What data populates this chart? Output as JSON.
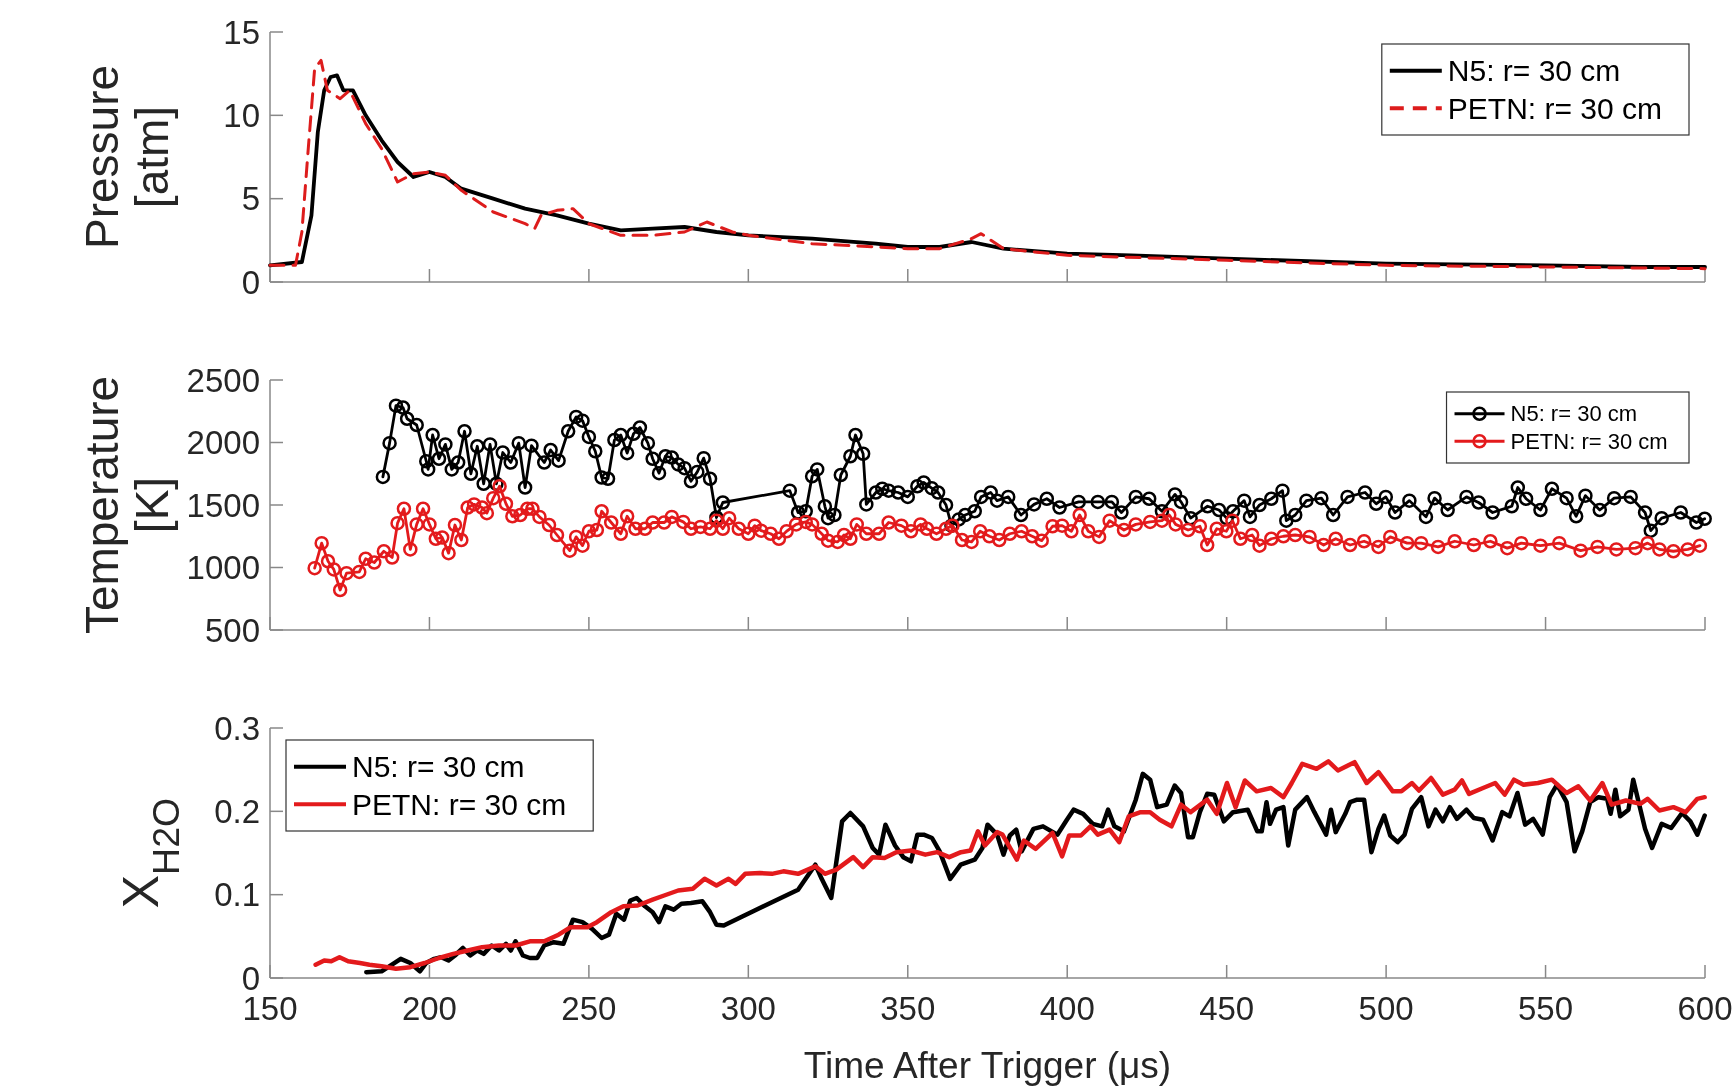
{
  "chart_data": [
    {
      "type": "line",
      "ylabel": "Pressure [atm]",
      "xlim": [
        150,
        600
      ],
      "xticks": [
        150,
        200,
        250,
        300,
        350,
        400,
        450,
        500,
        550,
        600
      ],
      "ylim": [
        0,
        15
      ],
      "yticks": [
        0,
        5,
        10,
        15
      ],
      "tick_labels": "y",
      "legend": "top right",
      "grid": false,
      "series": [
        {
          "name": "N5: r= 30 cm",
          "color": "#000000",
          "line_style": "solid",
          "x": [
            150,
            160,
            163,
            165,
            167,
            169,
            171,
            173,
            176,
            180,
            185,
            190,
            195,
            200,
            205,
            210,
            220,
            230,
            240,
            250,
            260,
            270,
            280,
            290,
            300,
            320,
            340,
            350,
            360,
            370,
            380,
            400,
            420,
            450,
            500,
            550,
            580,
            600
          ],
          "values": [
            1,
            1.2,
            4,
            9,
            11.5,
            12.3,
            12.4,
            11.5,
            11.5,
            10,
            8.5,
            7.2,
            6.3,
            6.6,
            6.3,
            5.6,
            5,
            4.4,
            4,
            3.5,
            3.1,
            3.2,
            3.3,
            3,
            2.8,
            2.6,
            2.3,
            2.1,
            2.1,
            2.4,
            2,
            1.7,
            1.6,
            1.4,
            1.1,
            1,
            0.9,
            0.9
          ]
        },
        {
          "name": "PETN: r= 30 cm",
          "color": "#dd1c1c",
          "line_style": "dashed",
          "x": [
            150,
            158,
            160,
            162,
            164,
            166,
            168,
            172,
            175,
            180,
            185,
            190,
            195,
            200,
            205,
            210,
            220,
            230,
            233,
            235,
            240,
            245,
            250,
            260,
            270,
            280,
            287,
            295,
            300,
            320,
            330,
            340,
            350,
            360,
            370,
            373,
            380,
            400,
            450,
            500,
            550,
            600
          ],
          "values": [
            1,
            1,
            3,
            8,
            12.8,
            13.3,
            11.5,
            11,
            11.5,
            9.5,
            8,
            6,
            6.5,
            6.6,
            6.4,
            5.5,
            4.2,
            3.5,
            3.2,
            4,
            4.3,
            4.4,
            3.5,
            2.8,
            2.8,
            3,
            3.6,
            3,
            2.8,
            2.3,
            2.2,
            2.1,
            2,
            2,
            2.6,
            2.9,
            2,
            1.6,
            1.3,
            1,
            0.9,
            0.8
          ]
        }
      ]
    },
    {
      "type": "line",
      "ylabel": "Temperature [K]",
      "xlim": [
        150,
        600
      ],
      "xticks": [
        150,
        200,
        250,
        300,
        350,
        400,
        450,
        500,
        550,
        600
      ],
      "ylim": [
        500,
        2500
      ],
      "yticks": [
        500,
        1000,
        1500,
        2000,
        2500
      ],
      "tick_labels": "y",
      "legend": "top right",
      "marker": "circle",
      "grid": false,
      "series": [
        {
          "name": "N5: r= 30 cm",
          "color": "#000000",
          "x": [
            185.4,
            187.5,
            189.5,
            191.7,
            193,
            196,
            199,
            199.6,
            201,
            203,
            205,
            207,
            209,
            211,
            213,
            215,
            217,
            219,
            221,
            223,
            225.5,
            228,
            230,
            232,
            236,
            238,
            240.5,
            243.5,
            246,
            248,
            250,
            252,
            254,
            256,
            258,
            260,
            262,
            264,
            266,
            268.5,
            270,
            272,
            274,
            276,
            278,
            280,
            282,
            284,
            286,
            288,
            290,
            292,
            313,
            315.6,
            318,
            320,
            321.6,
            324,
            325,
            327,
            329,
            332,
            333.6,
            336,
            337,
            340,
            342,
            344,
            347,
            350,
            353,
            355,
            357.5,
            359.5,
            362,
            363.7,
            366,
            368,
            371,
            373,
            376,
            378,
            381.5,
            385.5,
            389.6,
            393.6,
            397.6,
            403.6,
            409.6,
            414,
            417,
            421.5,
            425.7,
            429.7,
            433.8,
            435.7,
            438.7,
            444,
            447.6,
            450,
            452,
            455.5,
            457.3,
            460.3,
            464,
            467.5,
            468.7,
            471.5,
            475,
            479.7,
            483.4,
            487.9,
            493.4,
            496.9,
            499.9,
            502.8,
            507.3,
            512.5,
            515.2,
            519.3,
            525.2,
            529,
            533.4,
            539.4,
            541.3,
            543.9,
            548.4,
            552,
            556.6,
            559.6,
            562.5,
            567,
            571.5,
            576.7,
            581.2,
            583,
            586.4,
            592.4,
            597.3,
            599.9
          ],
          "values": [
            1725,
            1995,
            2295,
            2280,
            2190,
            2140,
            1850,
            1785,
            2060,
            1870,
            1985,
            1785,
            1840,
            2090,
            1750,
            1970,
            1670,
            1985,
            1670,
            1920,
            1840,
            1995,
            1640,
            1975,
            1840,
            1940,
            1855,
            2090,
            2205,
            2175,
            2045,
            1930,
            1720,
            1710,
            2020,
            2060,
            1915,
            2070,
            2120,
            1995,
            1870,
            1755,
            1890,
            1880,
            1825,
            1795,
            1690,
            1765,
            1875,
            1710,
            1400,
            1520,
            1615,
            1440,
            1450,
            1730,
            1785,
            1490,
            1395,
            1420,
            1740,
            1890,
            2060,
            1910,
            1505,
            1600,
            1630,
            1615,
            1600,
            1565,
            1650,
            1680,
            1635,
            1600,
            1500,
            1335,
            1385,
            1420,
            1450,
            1565,
            1600,
            1535,
            1565,
            1420,
            1505,
            1550,
            1480,
            1525,
            1525,
            1525,
            1440,
            1565,
            1550,
            1450,
            1585,
            1525,
            1395,
            1490,
            1460,
            1395,
            1450,
            1535,
            1405,
            1500,
            1550,
            1615,
            1375,
            1420,
            1535,
            1555,
            1420,
            1565,
            1600,
            1510,
            1565,
            1440,
            1535,
            1405,
            1555,
            1460,
            1565,
            1520,
            1440,
            1490,
            1640,
            1550,
            1460,
            1630,
            1555,
            1410,
            1575,
            1460,
            1555,
            1565,
            1440,
            1295,
            1395,
            1440,
            1360,
            1390
          ]
        },
        {
          "name": "PETN: r= 30 cm",
          "color": "#e31a1c",
          "x": [
            164,
            166.2,
            168.2,
            170,
            172,
            174,
            178,
            180,
            182.7,
            185.7,
            188.3,
            190,
            192,
            194,
            196,
            198,
            200,
            202,
            204,
            206,
            208,
            210,
            212,
            214,
            216.5,
            218,
            220,
            222,
            224,
            226,
            228.5,
            230.7,
            232.3,
            234.5,
            237.5,
            240,
            244,
            246,
            248,
            250,
            252.5,
            254,
            257,
            260,
            262,
            264.6,
            267.6,
            270,
            273.6,
            276,
            279.6,
            282,
            285,
            288,
            290,
            292,
            294,
            297,
            300,
            302,
            304,
            307,
            309.6,
            312,
            315,
            318,
            320,
            323,
            325,
            328,
            330,
            332,
            334,
            337,
            341,
            344,
            348,
            351,
            354,
            356,
            359,
            362,
            364,
            367,
            370,
            372.7,
            375.6,
            378.7,
            382,
            385.7,
            389,
            392,
            395.4,
            398.4,
            401.3,
            403.9,
            406.6,
            410,
            413.3,
            417.8,
            421.5,
            426,
            429.7,
            432,
            434,
            437.9,
            441.6,
            443.9,
            446.9,
            449.9,
            451.8,
            454.3,
            458,
            460.3,
            464,
            467.8,
            471.5,
            476,
            480.4,
            484.2,
            488.7,
            493.1,
            497.6,
            501.3,
            506.6,
            511,
            516.3,
            521.5,
            527.5,
            532.7,
            538,
            542.4,
            548.4,
            554.3,
            561,
            566.3,
            572.2,
            578.2,
            582,
            585.7,
            590.1,
            594.6,
            598.4
          ],
          "values": [
            995,
            1195,
            1050,
            985,
            820,
            955,
            965,
            1070,
            1040,
            1130,
            1080,
            1355,
            1470,
            1145,
            1345,
            1470,
            1345,
            1230,
            1240,
            1115,
            1340,
            1220,
            1480,
            1505,
            1480,
            1435,
            1555,
            1650,
            1510,
            1410,
            1420,
            1470,
            1470,
            1405,
            1340,
            1260,
            1135,
            1245,
            1175,
            1290,
            1300,
            1450,
            1360,
            1270,
            1410,
            1310,
            1310,
            1360,
            1360,
            1405,
            1365,
            1310,
            1325,
            1310,
            1375,
            1310,
            1395,
            1310,
            1270,
            1335,
            1295,
            1270,
            1230,
            1290,
            1345,
            1365,
            1345,
            1270,
            1215,
            1205,
            1260,
            1230,
            1345,
            1270,
            1270,
            1360,
            1335,
            1290,
            1345,
            1310,
            1270,
            1310,
            1335,
            1220,
            1205,
            1290,
            1250,
            1220,
            1270,
            1290,
            1250,
            1215,
            1330,
            1335,
            1290,
            1420,
            1290,
            1245,
            1375,
            1300,
            1345,
            1365,
            1375,
            1420,
            1345,
            1300,
            1330,
            1180,
            1310,
            1290,
            1375,
            1230,
            1260,
            1175,
            1230,
            1250,
            1260,
            1245,
            1180,
            1230,
            1180,
            1210,
            1165,
            1245,
            1195,
            1195,
            1165,
            1210,
            1180,
            1210,
            1155,
            1195,
            1175,
            1195,
            1135,
            1165,
            1145,
            1155,
            1195,
            1145,
            1130,
            1145,
            1175
          ]
        }
      ]
    },
    {
      "type": "line",
      "ylabel": "X$_{H2O}$",
      "xlabel": "Time After Trigger (μs)",
      "xlim": [
        150,
        600
      ],
      "xticks": [
        150,
        200,
        250,
        300,
        350,
        400,
        450,
        500,
        550,
        600
      ],
      "ylim": [
        0,
        0.3
      ],
      "yticks": [
        0,
        0.1,
        0.2,
        0.3
      ],
      "legend": "top left",
      "grid": false,
      "series": [
        {
          "name": "N5: r= 30 cm",
          "color": "#000000",
          "x": [
            180.2,
            185,
            191,
            194,
            197,
            199,
            201.5,
            203.7,
            206,
            208,
            210.5,
            212.8,
            215,
            217,
            219.5,
            221.8,
            224,
            225.5,
            227,
            229.3,
            231.5,
            233.8,
            236,
            239,
            242,
            245,
            248,
            251,
            254,
            256.3,
            258.6,
            261,
            263,
            265,
            267.6,
            270,
            272,
            274,
            276.6,
            279,
            282,
            285.6,
            288,
            290,
            292.3,
            315.6,
            321,
            323,
            326,
            329.4,
            332,
            336,
            339,
            341,
            343,
            346,
            348.6,
            351,
            353,
            355,
            357.6,
            360,
            363.3,
            366.6,
            371,
            373.4,
            375,
            378,
            380,
            382,
            384,
            385.7,
            389.4,
            392.4,
            396.9,
            399.9,
            402,
            405,
            408,
            411,
            412.8,
            414.8,
            417.8,
            421.5,
            423.7,
            426,
            428.2,
            431.2,
            433.7,
            435.7,
            437.9,
            439.4,
            441.6,
            443.9,
            446.1,
            449.1,
            452,
            456.6,
            459.6,
            461,
            462.5,
            463.6,
            465.5,
            467.8,
            469.3,
            471.5,
            475.2,
            477.5,
            481.2,
            482.7,
            484.2,
            487.2,
            488.7,
            490.9,
            493.1,
            495.4,
            497.6,
            499.4,
            501.3,
            503.6,
            505.8,
            508.1,
            511,
            513.3,
            515.5,
            517.8,
            520,
            522.2,
            525.2,
            527.5,
            530.4,
            533.4,
            536.4,
            538.7,
            541.2,
            543.6,
            546.1,
            549.1,
            551.3,
            553.6,
            556.6,
            559.1,
            561.5,
            564,
            566.6,
            569.3,
            570.4,
            571.9,
            573.4,
            576,
            577.5,
            581.2,
            583.4,
            586.4,
            589.4,
            592.8,
            595.4,
            597.6,
            599.9
          ],
          "values": [
            0.007,
            0.008,
            0.023,
            0.018,
            0.008,
            0.018,
            0.023,
            0.025,
            0.021,
            0.027,
            0.036,
            0.027,
            0.033,
            0.029,
            0.039,
            0.033,
            0.041,
            0.033,
            0.044,
            0.027,
            0.024,
            0.024,
            0.039,
            0.043,
            0.041,
            0.07,
            0.067,
            0.059,
            0.048,
            0.052,
            0.077,
            0.07,
            0.093,
            0.096,
            0.086,
            0.079,
            0.067,
            0.086,
            0.082,
            0.089,
            0.09,
            0.092,
            0.079,
            0.064,
            0.063,
            0.106,
            0.136,
            0.119,
            0.096,
            0.188,
            0.198,
            0.182,
            0.156,
            0.148,
            0.184,
            0.159,
            0.145,
            0.14,
            0.172,
            0.172,
            0.168,
            0.152,
            0.119,
            0.136,
            0.142,
            0.156,
            0.184,
            0.172,
            0.148,
            0.171,
            0.178,
            0.152,
            0.179,
            0.182,
            0.172,
            0.19,
            0.202,
            0.197,
            0.185,
            0.182,
            0.202,
            0.182,
            0.176,
            0.214,
            0.245,
            0.238,
            0.205,
            0.208,
            0.231,
            0.222,
            0.169,
            0.169,
            0.199,
            0.221,
            0.22,
            0.188,
            0.199,
            0.202,
            0.176,
            0.176,
            0.211,
            0.185,
            0.202,
            0.205,
            0.159,
            0.202,
            0.217,
            0.199,
            0.172,
            0.202,
            0.175,
            0.197,
            0.211,
            0.214,
            0.214,
            0.151,
            0.179,
            0.195,
            0.171,
            0.163,
            0.172,
            0.203,
            0.217,
            0.182,
            0.202,
            0.188,
            0.205,
            0.191,
            0.202,
            0.192,
            0.19,
            0.165,
            0.199,
            0.194,
            0.222,
            0.184,
            0.191,
            0.172,
            0.217,
            0.232,
            0.211,
            0.152,
            0.176,
            0.211,
            0.217,
            0.215,
            0.197,
            0.226,
            0.194,
            0.202,
            0.238,
            0.179,
            0.156,
            0.185,
            0.18,
            0.198,
            0.188,
            0.172,
            0.195
          ]
        },
        {
          "name": "PETN: r= 30 cm",
          "color": "#e31a1c",
          "x": [
            164.3,
            167,
            169.2,
            171.8,
            174.5,
            178.2,
            181.2,
            185,
            189.5,
            194,
            198.5,
            203,
            207.5,
            212,
            216.5,
            221.8,
            227,
            231.5,
            236,
            240.5,
            244.3,
            249.5,
            252.5,
            257,
            260.8,
            265.3,
            270,
            273.6,
            278,
            282.6,
            286.3,
            290,
            293.8,
            296,
            299,
            303.6,
            307.4,
            311,
            315.6,
            321,
            324,
            327.6,
            332.9,
            336,
            339,
            342.7,
            346.4,
            351,
            355.5,
            359.2,
            363,
            366.7,
            369.7,
            372,
            374.2,
            378,
            379.7,
            384.2,
            386.4,
            390.1,
            395.4,
            398.4,
            400.6,
            404.3,
            407.3,
            409.6,
            413.3,
            416.3,
            419.3,
            423,
            426,
            429,
            432.7,
            435.7,
            438.7,
            443.9,
            446.9,
            450.1,
            452.8,
            455.7,
            459.4,
            463.9,
            467.8,
            470.4,
            473.7,
            478.2,
            481.9,
            484.9,
            490.1,
            493.9,
            497.6,
            502.1,
            504.8,
            508.1,
            510.3,
            514.1,
            517.8,
            521.5,
            523.8,
            526,
            530.4,
            534.2,
            537.2,
            540.1,
            543.1,
            547.6,
            552,
            556.6,
            560.3,
            564,
            567.8,
            570.7,
            575.2,
            579.7,
            582,
            585.7,
            590.1,
            593.9,
            597.6,
            599.9
          ],
          "values": [
            0.016,
            0.021,
            0.02,
            0.025,
            0.02,
            0.018,
            0.016,
            0.014,
            0.011,
            0.013,
            0.018,
            0.024,
            0.029,
            0.033,
            0.037,
            0.039,
            0.039,
            0.044,
            0.044,
            0.052,
            0.061,
            0.061,
            0.067,
            0.079,
            0.086,
            0.087,
            0.094,
            0.099,
            0.105,
            0.107,
            0.119,
            0.111,
            0.119,
            0.113,
            0.125,
            0.126,
            0.125,
            0.128,
            0.125,
            0.134,
            0.125,
            0.13,
            0.145,
            0.133,
            0.145,
            0.144,
            0.151,
            0.153,
            0.148,
            0.151,
            0.145,
            0.151,
            0.153,
            0.176,
            0.159,
            0.175,
            0.172,
            0.142,
            0.165,
            0.155,
            0.174,
            0.146,
            0.171,
            0.171,
            0.182,
            0.172,
            0.178,
            0.163,
            0.194,
            0.199,
            0.199,
            0.19,
            0.182,
            0.208,
            0.199,
            0.214,
            0.197,
            0.234,
            0.205,
            0.237,
            0.224,
            0.228,
            0.217,
            0.234,
            0.257,
            0.251,
            0.26,
            0.249,
            0.259,
            0.234,
            0.247,
            0.224,
            0.224,
            0.234,
            0.225,
            0.24,
            0.22,
            0.226,
            0.237,
            0.221,
            0.228,
            0.234,
            0.22,
            0.238,
            0.232,
            0.234,
            0.238,
            0.222,
            0.23,
            0.213,
            0.234,
            0.208,
            0.213,
            0.209,
            0.215,
            0.201,
            0.205,
            0.199,
            0.215,
            0.217
          ]
        }
      ]
    }
  ]
}
